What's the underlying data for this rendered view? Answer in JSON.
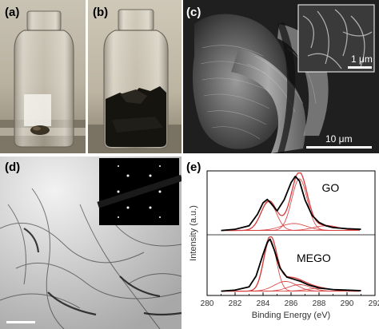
{
  "panels": {
    "a": {
      "label": "(a)"
    },
    "b": {
      "label": "(b)"
    },
    "c": {
      "label": "(c)",
      "scale_main": "10 μm",
      "scale_inset": "1 μm"
    },
    "d": {
      "label": "(d)"
    },
    "e": {
      "label": "(e)"
    }
  },
  "chart_data": {
    "type": "line",
    "xlabel": "Binding Energy (eV)",
    "ylabel": "Intensity (a.u.)",
    "xlim": [
      280,
      292
    ],
    "xticks": [
      "280",
      "282",
      "284",
      "286",
      "288",
      "290",
      "292"
    ],
    "series": [
      {
        "name": "GO",
        "color": "#000000",
        "x": [
          281.0,
          282.0,
          283.0,
          283.6,
          284.0,
          284.3,
          284.6,
          285.0,
          285.5,
          286.0,
          286.3,
          286.6,
          287.0,
          287.5,
          288.0,
          288.5,
          289.0,
          290.0,
          291.0
        ],
        "y": [
          0.02,
          0.04,
          0.1,
          0.3,
          0.5,
          0.56,
          0.48,
          0.36,
          0.55,
          0.85,
          0.96,
          0.88,
          0.55,
          0.28,
          0.16,
          0.1,
          0.07,
          0.05,
          0.04
        ]
      },
      {
        "name": "MEGO",
        "color": "#000000",
        "x": [
          281.0,
          282.0,
          283.0,
          283.5,
          284.0,
          284.3,
          284.5,
          284.8,
          285.2,
          285.7,
          286.2,
          286.7,
          287.2,
          288.0,
          289.0,
          290.0,
          291.0
        ],
        "y": [
          0.02,
          0.04,
          0.1,
          0.3,
          0.7,
          0.92,
          0.98,
          0.78,
          0.45,
          0.28,
          0.24,
          0.2,
          0.14,
          0.08,
          0.05,
          0.04,
          0.03
        ]
      }
    ]
  }
}
